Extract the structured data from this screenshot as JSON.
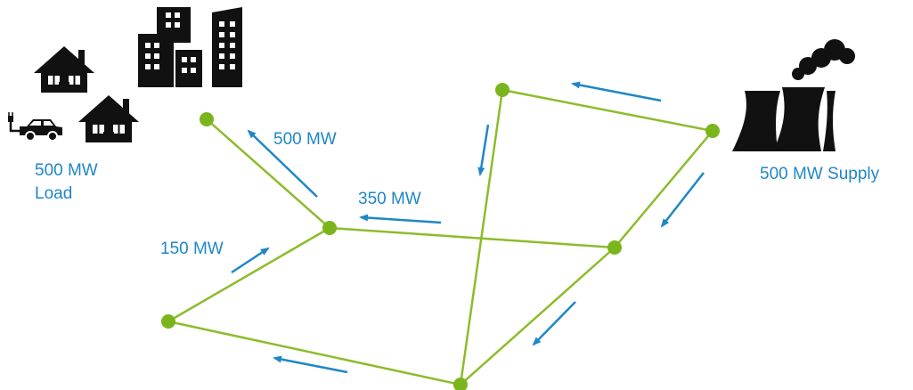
{
  "colors": {
    "line": "#8cbc2b",
    "node": "#7ab51d",
    "arrow": "#1f87c6",
    "label": "#1f87c6",
    "icon": "#111111"
  },
  "icons": [
    "house-icon",
    "electric-car-icon",
    "city-buildings-icon",
    "power-plant-icon"
  ],
  "labels": {
    "load_value": "500 MW",
    "load_word": "Load",
    "supply": "500 MW Supply",
    "flow_top_left": "500 MW",
    "flow_center": "350 MW",
    "flow_left": "150 MW"
  }
}
